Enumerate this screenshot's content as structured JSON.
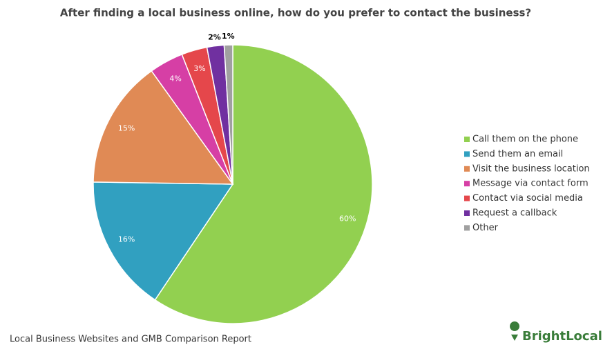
{
  "chart_data": {
    "type": "pie",
    "title": "After finding a local business online, how do you prefer to contact the business?",
    "categories": [
      "Call them on the phone",
      "Send them an email",
      "Visit the business location",
      "Message via contact form",
      "Contact via social media",
      "Request a callback",
      "Other"
    ],
    "values": [
      60,
      16,
      15,
      4,
      3,
      2,
      1
    ],
    "value_labels": [
      "60%",
      "16%",
      "15%",
      "4%",
      "3%",
      "2%",
      "1%"
    ],
    "colors": [
      "#92d050",
      "#31a0c0",
      "#e08a55",
      "#d63fa5",
      "#e5474b",
      "#7030a0",
      "#a0a0a0"
    ],
    "legend": "right",
    "source": "Local Business Websites and GMB Comparison Report",
    "logo": "BrightLocal"
  }
}
